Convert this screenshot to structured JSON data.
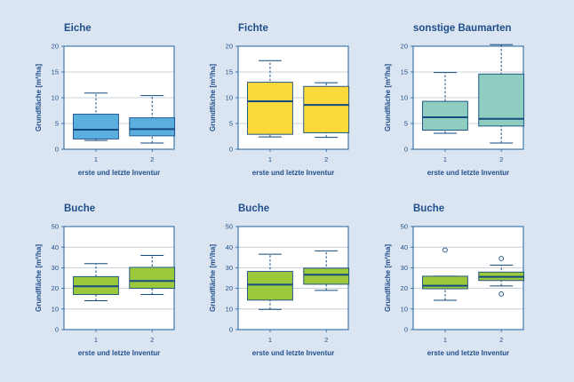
{
  "chart_data": [
    {
      "type": "box",
      "title": "Eiche",
      "xlabel": "erste und letzte Inventur",
      "ylabel": "Grundfläche [m²/ha]",
      "ylim": [
        0,
        20
      ],
      "yticks": [
        0,
        5,
        10,
        15,
        20
      ],
      "categories": [
        "1",
        "2"
      ],
      "color": "#5aaee0",
      "grid": true,
      "boxes": [
        {
          "min": 1.7,
          "q1": 2.0,
          "median": 3.8,
          "q3": 6.8,
          "max": 10.9,
          "outliers": []
        },
        {
          "min": 1.2,
          "q1": 2.6,
          "median": 3.9,
          "q3": 6.1,
          "max": 10.4,
          "outliers": []
        }
      ]
    },
    {
      "type": "box",
      "title": "Fichte",
      "xlabel": "erste und letzte Inventur",
      "ylabel": "Grundfläche [m²/ha]",
      "ylim": [
        0,
        20
      ],
      "yticks": [
        0,
        5,
        10,
        15,
        20
      ],
      "categories": [
        "1",
        "2"
      ],
      "color": "#fcd93a",
      "grid": true,
      "boxes": [
        {
          "min": 2.4,
          "q1": 2.9,
          "median": 9.3,
          "q3": 13.0,
          "max": 17.2,
          "outliers": []
        },
        {
          "min": 2.3,
          "q1": 3.2,
          "median": 8.6,
          "q3": 12.2,
          "max": 12.9,
          "outliers": []
        }
      ]
    },
    {
      "type": "box",
      "title": "sonstige Baumarten",
      "xlabel": "erste und letzte Inventur",
      "ylabel": "Grundfläche [m²/ha]",
      "ylim": [
        0,
        20
      ],
      "yticks": [
        0,
        5,
        10,
        15,
        20
      ],
      "categories": [
        "1",
        "2"
      ],
      "color": "#8ecdbf",
      "grid": true,
      "boxes": [
        {
          "min": 3.1,
          "q1": 3.7,
          "median": 6.2,
          "q3": 9.3,
          "max": 14.9,
          "outliers": []
        },
        {
          "min": 1.2,
          "q1": 4.5,
          "median": 5.9,
          "q3": 14.6,
          "max": 20.3,
          "outliers": []
        }
      ]
    },
    {
      "type": "box",
      "title": "Buche",
      "xlabel": "erste und letzte Inventur",
      "ylabel": "Grundfläche [m²/ha]",
      "ylim": [
        0,
        50
      ],
      "yticks": [
        0,
        10,
        20,
        30,
        40,
        50
      ],
      "categories": [
        "1",
        "2"
      ],
      "color": "#9cc83c",
      "grid": true,
      "boxes": [
        {
          "min": 14.0,
          "q1": 17.0,
          "median": 21.0,
          "q3": 25.7,
          "max": 32.0,
          "outliers": []
        },
        {
          "min": 17.0,
          "q1": 20.0,
          "median": 23.6,
          "q3": 30.2,
          "max": 36.0,
          "outliers": []
        }
      ]
    },
    {
      "type": "box",
      "title": "Buche",
      "xlabel": "erste und letzte Inventur",
      "ylabel": "Grundfläche [m²/ha]",
      "ylim": [
        0,
        50
      ],
      "yticks": [
        0,
        10,
        20,
        30,
        40,
        50
      ],
      "categories": [
        "1",
        "2"
      ],
      "color": "#9cc83c",
      "grid": true,
      "boxes": [
        {
          "min": 9.8,
          "q1": 14.3,
          "median": 21.8,
          "q3": 28.2,
          "max": 36.6,
          "outliers": []
        },
        {
          "min": 19.0,
          "q1": 22.0,
          "median": 26.6,
          "q3": 29.8,
          "max": 38.2,
          "outliers": []
        }
      ]
    },
    {
      "type": "box",
      "title": "Buche",
      "xlabel": "erste und letzte Inventur",
      "ylabel": "Grundfläche [m²/ha]",
      "ylim": [
        0,
        50
      ],
      "yticks": [
        0,
        10,
        20,
        30,
        40,
        50
      ],
      "categories": [
        "1",
        "2"
      ],
      "color": "#9cc83c",
      "grid": true,
      "boxes": [
        {
          "min": 14.2,
          "q1": 19.8,
          "median": 21.3,
          "q3": 25.9,
          "max": 25.9,
          "outliers": [
            38.6
          ]
        },
        {
          "min": 21.2,
          "q1": 23.8,
          "median": 25.6,
          "q3": 27.9,
          "max": 31.3,
          "outliers": [
            34.5,
            17.3
          ]
        }
      ]
    }
  ]
}
